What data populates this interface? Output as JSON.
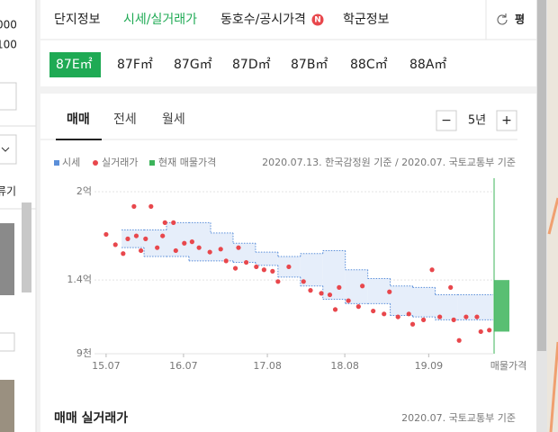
{
  "sidebar": {
    "texts": [
      "000",
      "100",
      "류기"
    ]
  },
  "tabs": {
    "items": [
      "단지정보",
      "시세/실거래가",
      "동호수/공시가격",
      "학군정보"
    ],
    "active": 1,
    "badge": "N",
    "unit_button": "평"
  },
  "areas": {
    "items": [
      "87E㎡",
      "87F㎡",
      "87G㎡",
      "87D㎡",
      "87B㎡",
      "88C㎡",
      "88A㎡"
    ],
    "active": 0
  },
  "trade_tabs": {
    "items": [
      "매매",
      "전세",
      "월세"
    ],
    "active": 0
  },
  "period": {
    "minus": "−",
    "value": "5년",
    "plus": "+"
  },
  "chart_data": {
    "type": "scatter",
    "source": "2020.07.13. 한국감정원 기준 / 2020.07. 국토교통부 기준",
    "current_label": "매물가격",
    "xlim": [
      2015.35,
      2020.5
    ],
    "ylim": [
      9000,
      20000
    ],
    "xticks": [
      {
        "value": 2015.5,
        "label": "15.07"
      },
      {
        "value": 2016.5,
        "label": "16.07"
      },
      {
        "value": 2017.583,
        "label": "17.08"
      },
      {
        "value": 2018.583,
        "label": "18.08"
      },
      {
        "value": 2019.667,
        "label": "19.09"
      }
    ],
    "yticks": [
      {
        "value": 20000,
        "label": "2억"
      },
      {
        "value": 14000,
        "label": "1.4억"
      },
      {
        "value": 9000,
        "label": "9천"
      }
    ],
    "grid": true,
    "series": [
      {
        "name": "시세",
        "color": "#5b8fd9",
        "fill": "#e6eefa",
        "x": [
          2015.7,
          2015.99,
          2016.28,
          2016.57,
          2016.85,
          2017.14,
          2017.43,
          2017.72,
          2018.01,
          2018.3,
          2018.59,
          2018.88,
          2019.17,
          2019.46,
          2019.75,
          2020.04
        ],
        "upper": [
          17400,
          17400,
          17900,
          17900,
          17200,
          16500,
          15900,
          15600,
          15800,
          16000,
          14700,
          14100,
          13600,
          13500,
          13000,
          13000
        ],
        "lower": [
          16200,
          15600,
          15600,
          15300,
          15300,
          15200,
          15000,
          14200,
          13600,
          12700,
          12400,
          12400,
          11600,
          11500,
          11300,
          11300
        ]
      },
      {
        "name": "실거래가",
        "color": "#e8474c",
        "x": [
          2015.5,
          2015.62,
          2015.72,
          2015.78,
          2015.86,
          2015.89,
          2015.95,
          2016.01,
          2016.08,
          2016.16,
          2016.23,
          2016.26,
          2016.37,
          2016.4,
          2016.51,
          2016.61,
          2016.7,
          2016.84,
          2016.98,
          2017.05,
          2017.17,
          2017.21,
          2017.31,
          2017.44,
          2017.54,
          2017.65,
          2017.72,
          2017.86,
          2018.05,
          2018.14,
          2018.28,
          2018.39,
          2018.46,
          2018.51,
          2018.63,
          2018.76,
          2018.81,
          2018.95,
          2019.09,
          2019.16,
          2019.27,
          2019.41,
          2019.46,
          2019.6,
          2019.71,
          2019.81,
          2019.95,
          2019.99,
          2020.06,
          2020.15,
          2020.29,
          2020.34,
          2020.45
        ],
        "values": [
          17100,
          16400,
          15800,
          16800,
          19000,
          17000,
          16000,
          16800,
          19000,
          16200,
          17000,
          17900,
          17900,
          16000,
          16500,
          16600,
          16200,
          15900,
          16100,
          15300,
          14800,
          16200,
          15200,
          14900,
          14700,
          14600,
          13900,
          14900,
          13900,
          13300,
          13100,
          13000,
          12000,
          13500,
          12600,
          12200,
          13600,
          11900,
          11700,
          13200,
          11500,
          11700,
          11000,
          11300,
          14700,
          11500,
          13500,
          11300,
          9900,
          11500,
          11500,
          10500,
          10600
        ]
      },
      {
        "name": "현재 매물가격",
        "color": "#3cb45a",
        "range": [
          10500,
          14000
        ]
      }
    ]
  },
  "section": {
    "title": "매매 실거래가",
    "source": "2020.07. 국토교통부 기준"
  }
}
